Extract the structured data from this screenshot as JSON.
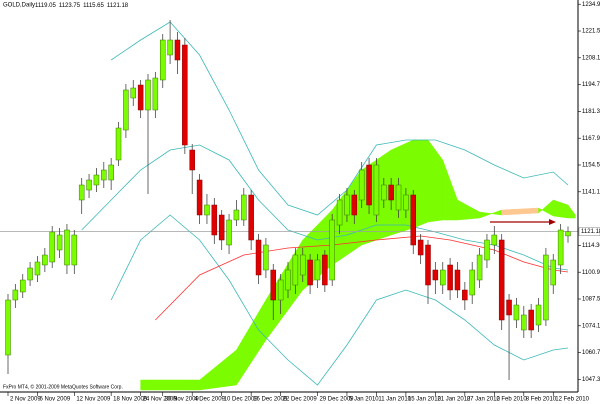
{
  "chart_data": {
    "type": "candlestick",
    "title": "GOLD,Daily",
    "footer": "FxPro MT4, © 2001-2009 MetaQuotes Software Corp.",
    "categories": [
      "2 Nov 2009",
      null,
      null,
      null,
      "6 Nov 2009",
      null,
      null,
      null,
      null,
      "12 Nov 2009",
      null,
      null,
      null,
      null,
      "18 Nov 2009",
      null,
      null,
      null,
      "24 Nov 2009",
      null,
      null,
      "30 Nov 2009",
      null,
      null,
      null,
      "4 Dec 2009",
      null,
      null,
      null,
      "10 Dec 2009",
      null,
      null,
      null,
      "16 Dec 2009",
      null,
      null,
      null,
      "22 Dec 2009",
      null,
      null,
      null,
      null,
      "29 Dec 2009",
      null,
      null,
      null,
      "5 Jan 2010",
      null,
      null,
      null,
      "11 Jan 2010",
      null,
      null,
      null,
      "15 Jan 2010",
      null,
      null,
      null,
      "21 Jan 2010",
      null,
      null,
      null,
      "27 Jan 2010",
      null,
      null,
      null,
      "2 Feb 2010",
      null,
      null,
      null,
      "8 Feb 2010",
      null,
      null,
      null,
      "12 Feb 2010",
      null,
      null
    ],
    "open": [
      1059.5,
      1087,
      1091,
      1097,
      1099.5,
      1104.5,
      1106,
      1112,
      1104.5,
      1104.5,
      1137,
      1142,
      1144.5,
      1147,
      1147,
      1157,
      1172,
      1188,
      1194.5,
      1182,
      1182,
      1197,
      1209.5,
      1217,
      1214.5,
      1162,
      1147,
      1129.5,
      1134.5,
      1129.5,
      1114.5,
      1127,
      1127,
      1139.5,
      1117,
      1102,
      1102,
      1087,
      1092,
      1094.5,
      1099.5,
      1107,
      1097,
      1109.5,
      1097,
      1124.5,
      1129.5,
      1139.5,
      1137,
      1154.5,
      1129.5,
      1137,
      1144.5,
      1132,
      1132,
      1139.5,
      1117,
      1114.5,
      1102,
      1094.5,
      1104.5,
      1102,
      1092,
      1089.5,
      1097,
      1107,
      1114.5,
      1117,
      1087,
      1077,
      1072,
      1082,
      1074.5,
      1077,
      1094.5,
      1104.5,
      1119.05
    ],
    "high": [
      1090,
      1095,
      1100,
      1106,
      1109,
      1113,
      1124,
      1123,
      1125,
      1122,
      1148,
      1150,
      1153,
      1156,
      1158,
      1176,
      1195,
      1197,
      1197,
      1200,
      1201,
      1220,
      1227,
      1221,
      1218,
      1165,
      1150,
      1140,
      1138,
      1132,
      1130,
      1137,
      1143,
      1142,
      1120,
      1118,
      1105,
      1100,
      1106,
      1113,
      1113,
      1110,
      1110,
      1112,
      1130,
      1140,
      1143,
      1142,
      1156,
      1158,
      1158,
      1148,
      1148,
      1148,
      1143,
      1142,
      1120,
      1117,
      1106,
      1106,
      1108,
      1106,
      1096,
      1106,
      1113,
      1120,
      1124,
      1120,
      1090,
      1088,
      1084,
      1085,
      1088,
      1113,
      1110,
      1125,
      1123.75
    ],
    "low": [
      1050,
      1083,
      1088,
      1094,
      1096,
      1101,
      1103,
      1108,
      1100,
      1100,
      1130,
      1138,
      1141,
      1143,
      1142,
      1154,
      1168,
      1184,
      1178,
      1140,
      1178,
      1193,
      1205,
      1200,
      1160,
      1140,
      1125,
      1125,
      1115,
      1112,
      1110,
      1124,
      1124,
      1112,
      1095,
      1098,
      1077,
      1080,
      1088,
      1090,
      1096,
      1090,
      1093,
      1091,
      1094,
      1120,
      1126,
      1125,
      1133,
      1130,
      1126,
      1133,
      1132,
      1128,
      1128,
      1110,
      1105,
      1085,
      1090,
      1090,
      1087,
      1088,
      1082,
      1085,
      1093,
      1103,
      1110,
      1072,
      1047,
      1073,
      1068,
      1068,
      1071,
      1074,
      1090,
      1100,
      1115.65
    ],
    "close": [
      1087,
      1092,
      1097,
      1103,
      1106,
      1109.5,
      1121,
      1119.5,
      1122,
      1119.5,
      1144.5,
      1147,
      1149.5,
      1152,
      1154.5,
      1173,
      1192,
      1193,
      1182,
      1197,
      1198,
      1217,
      1217,
      1207,
      1164.5,
      1152,
      1129.5,
      1134.5,
      1119.5,
      1117,
      1127,
      1132,
      1139.5,
      1117,
      1099.5,
      1114.5,
      1087,
      1097,
      1102,
      1109.5,
      1109.5,
      1094.5,
      1107,
      1094.5,
      1127,
      1137,
      1139.5,
      1129.5,
      1152,
      1134.5,
      1154.5,
      1144.5,
      1137,
      1144.5,
      1139.5,
      1114.5,
      1109.5,
      1094.5,
      1097,
      1102,
      1092,
      1092,
      1087,
      1102,
      1109.5,
      1117,
      1119.5,
      1077,
      1079.5,
      1084.5,
      1079.5,
      1072,
      1084.5,
      1109.5,
      1107,
      1122,
      1121.18
    ],
    "up_color": "#7cfc00",
    "down_color": "#e00000",
    "overlays": [
      {
        "color": "#3cb8b8",
        "x": [
          14,
          18,
          22,
          26,
          30,
          34,
          38,
          42,
          46,
          50,
          54,
          58,
          62,
          66,
          70,
          74,
          76
        ],
        "values": [
          1207,
          1217,
          1226,
          1209.5,
          1182,
          1152,
          1134.5,
          1129.5,
          1142,
          1164.5,
          1167,
          1167,
          1162,
          1154.5,
          1148,
          1151,
          1144.5
        ]
      },
      {
        "color": "#3cb8b8",
        "x": [
          10,
          14,
          18,
          22,
          26,
          30,
          34,
          38,
          42,
          46,
          50,
          54,
          58,
          62,
          66,
          70,
          74,
          76
        ],
        "values": [
          1122,
          1137,
          1152,
          1162,
          1164.5,
          1157,
          1137,
          1122,
          1117,
          1119.5,
          1124.5,
          1124.5,
          1121,
          1117,
          1114.5,
          1109.5,
          1103,
          1102
        ]
      },
      {
        "color": "#3cb8b8",
        "x": [
          14,
          18,
          22,
          26,
          30,
          34,
          38,
          42,
          46,
          50,
          54,
          58,
          62,
          66,
          70,
          74,
          76
        ],
        "values": [
          1087,
          1117,
          1129.5,
          1117,
          1097,
          1072,
          1057,
          1044.5,
          1064.5,
          1087,
          1092,
          1087,
          1077,
          1064.5,
          1057,
          1062,
          1063
        ]
      },
      {
        "color": "#ff3030",
        "x": [
          20,
          26,
          32,
          38,
          44,
          50,
          56,
          60,
          66,
          70,
          74,
          76
        ],
        "values": [
          1077,
          1099.5,
          1109.5,
          1113,
          1114.5,
          1117,
          1119,
          1117,
          1112,
          1106,
          1102,
          1101
        ]
      }
    ],
    "cloud": {
      "color": "#7cfc00",
      "alt_color": "#ffc890",
      "x": [
        18,
        26,
        31,
        35,
        40,
        44,
        48,
        52,
        55,
        57,
        59,
        61,
        64,
        67,
        72,
        74,
        76,
        77
      ],
      "span_a": [
        1047,
        1047,
        1062,
        1087,
        1117,
        1132,
        1152,
        1162,
        1167,
        1167,
        1157,
        1137,
        1131,
        1129.5,
        1130.5,
        1137,
        1134.5,
        1129.5
      ],
      "span_b": [
        1042,
        1042,
        1044.5,
        1067,
        1092,
        1104.5,
        1114.5,
        1119.5,
        1123,
        1126,
        1127,
        1127,
        1128,
        1132,
        1133,
        1129,
        1128,
        1128
      ]
    },
    "ylim": [
      1041,
      1237
    ],
    "yticks": [
      {
        "value": 1234.9,
        "label": "1234.90"
      },
      {
        "value": 1221.5,
        "label": "1221.50"
      },
      {
        "value": 1208.1,
        "label": "1208.10"
      },
      {
        "value": 1194.7,
        "label": "1194.70"
      },
      {
        "value": 1181.3,
        "label": "1181.30"
      },
      {
        "value": 1167.9,
        "label": "1167.90"
      },
      {
        "value": 1154.5,
        "label": "1154.50"
      },
      {
        "value": 1141.1,
        "label": "1141.10"
      },
      {
        "value": 1114.3,
        "label": "1114.30"
      },
      {
        "value": 1100.9,
        "label": "1100.90"
      },
      {
        "value": 1087.5,
        "label": "1087.50"
      },
      {
        "value": 1074.1,
        "label": "1074.10"
      },
      {
        "value": 1060.7,
        "label": "1060.70"
      },
      {
        "value": 1047.3,
        "label": "1047.30"
      }
    ],
    "grid": false
  }
}
